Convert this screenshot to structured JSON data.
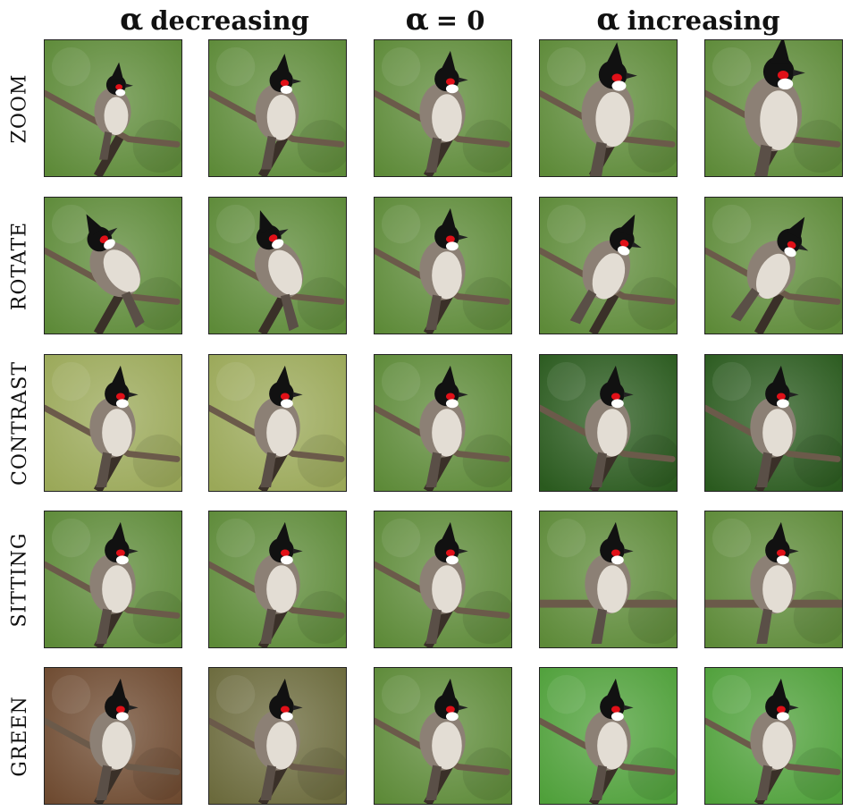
{
  "headers": {
    "left": {
      "symbol": "α",
      "text": "decreasing"
    },
    "middle": {
      "symbol": "α",
      "text": "= 0"
    },
    "right": {
      "symbol": "α",
      "text": "increasing"
    }
  },
  "rows": [
    {
      "label": "ZOOM"
    },
    {
      "label": "ROTATE"
    },
    {
      "label": "CONTRAST"
    },
    {
      "label": "SITTING"
    },
    {
      "label": "GREEN"
    }
  ],
  "colors": {
    "bird_body": "#8c8075",
    "bird_belly": "#e3ddd4",
    "bird_head": "#111111",
    "bird_red": "#e01018",
    "branch": "#6b5a4a",
    "bg_default": "#5d8a38",
    "bg_dark": "#2a5a1e",
    "bg_light": "#9aa858",
    "bg_brown": "#6e4a30",
    "bg_bright_green": "#4fa03a"
  }
}
